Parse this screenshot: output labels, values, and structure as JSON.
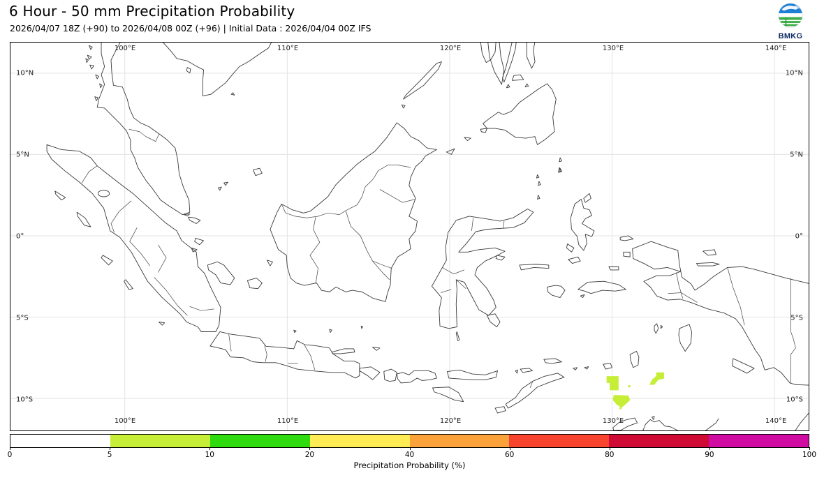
{
  "header": {
    "title": "6 Hour - 50 mm Precipitation Probability",
    "subtitle": "2026/04/07 18Z (+90) to 2026/04/08 00Z (+96) | Initial Data : 2026/04/04 00Z IFS"
  },
  "logo": {
    "label": "BMKG",
    "sky_color": "#1f7fd4",
    "land_color": "#3fae49",
    "text_color": "#0d2a66"
  },
  "map": {
    "extent": {
      "lon_min": 92.96,
      "lon_max": 142.1,
      "lat_min": -11.97,
      "lat_max": 11.88
    },
    "lon_ticks": [
      {
        "value": 100,
        "label": "100°E"
      },
      {
        "value": 110,
        "label": "110°E"
      },
      {
        "value": 120,
        "label": "120°E"
      },
      {
        "value": 130,
        "label": "130°E"
      },
      {
        "value": 140,
        "label": "140°E"
      }
    ],
    "lat_ticks": [
      {
        "value": 10,
        "label": "10°N"
      },
      {
        "value": 5,
        "label": "5°N"
      },
      {
        "value": 0,
        "label": "0°"
      },
      {
        "value": -5,
        "label": "5°S"
      },
      {
        "value": -10,
        "label": "10°S"
      }
    ],
    "grid_color": "#e3e3e3",
    "coast_color": "#3a3a3a"
  },
  "colorbar": {
    "caption": "Precipitation Probability (%)",
    "tick_labels": [
      "0",
      "5",
      "10",
      "20",
      "40",
      "60",
      "80",
      "90",
      "100"
    ],
    "segments": [
      {
        "range": [
          0,
          5
        ],
        "color": "#ffffff"
      },
      {
        "range": [
          5,
          10
        ],
        "color": "#c6ee37"
      },
      {
        "range": [
          10,
          20
        ],
        "color": "#2fdb0e"
      },
      {
        "range": [
          20,
          40
        ],
        "color": "#ffec55"
      },
      {
        "range": [
          40,
          60
        ],
        "color": "#fba23a"
      },
      {
        "range": [
          60,
          80
        ],
        "color": "#f8442e"
      },
      {
        "range": [
          80,
          90
        ],
        "color": "#cf0a35"
      },
      {
        "range": [
          90,
          100
        ],
        "color": "#d00ba2"
      }
    ]
  },
  "precipitation": {
    "shown_value_range": "5-10 %",
    "fill_color": "#c6ee37",
    "areas": [
      {
        "name": "patch-babar-west",
        "polygon_lonlat": [
          [
            129.66,
            -8.63
          ],
          [
            130.4,
            -8.63
          ],
          [
            130.4,
            -9.5
          ],
          [
            129.85,
            -9.5
          ],
          [
            129.85,
            -9.05
          ],
          [
            129.66,
            -9.05
          ]
        ]
      },
      {
        "name": "patch-tanimbar-sw",
        "polygon_lonlat": [
          [
            132.72,
            -8.4
          ],
          [
            133.2,
            -8.4
          ],
          [
            133.2,
            -8.78
          ],
          [
            132.85,
            -8.85
          ],
          [
            132.6,
            -9.16
          ],
          [
            132.3,
            -9.16
          ],
          [
            132.45,
            -8.85
          ],
          [
            132.72,
            -8.62
          ]
        ]
      },
      {
        "name": "patch-timor-sea",
        "polygon_lonlat": [
          [
            130.1,
            -9.79
          ],
          [
            131.0,
            -9.82
          ],
          [
            131.11,
            -10.1
          ],
          [
            130.9,
            -10.3
          ],
          [
            130.6,
            -10.56
          ],
          [
            130.3,
            -10.4
          ],
          [
            130.04,
            -10.1
          ]
        ]
      },
      {
        "name": "patch-dot-1",
        "polygon_lonlat": [
          [
            131.0,
            -9.18
          ],
          [
            131.12,
            -9.18
          ],
          [
            131.12,
            -9.32
          ],
          [
            131.0,
            -9.32
          ]
        ]
      },
      {
        "name": "patch-dot-2",
        "polygon_lonlat": [
          [
            130.45,
            -10.52
          ],
          [
            130.58,
            -10.52
          ],
          [
            130.58,
            -10.66
          ],
          [
            130.45,
            -10.66
          ]
        ]
      }
    ]
  }
}
